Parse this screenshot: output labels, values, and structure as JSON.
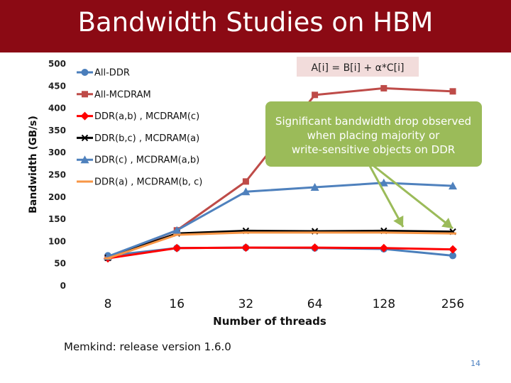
{
  "slide": {
    "title": "Bandwidth Studies on HBM",
    "footnote": "Memkind: release version 1.6.0",
    "page_number": "14",
    "title_bar_color": "#8b0a14"
  },
  "chart_data": {
    "type": "line",
    "xlabel": "Number of threads",
    "ylabel": "Bandwidth (GB/s)",
    "categories": [
      "8",
      "16",
      "32",
      "64",
      "128",
      "256"
    ],
    "ylim": [
      0,
      500
    ],
    "yticks": [
      "0",
      "50",
      "100",
      "150",
      "200",
      "250",
      "300",
      "350",
      "400",
      "450",
      "500"
    ],
    "grid": false,
    "legend_position": "top-left",
    "series": [
      {
        "name": "All-DDR",
        "color": "#4a7ebb",
        "marker": "circle",
        "values": [
          68,
          85,
          86,
          85,
          83,
          68
        ]
      },
      {
        "name": "All-MCDRAM",
        "color": "#be4b48",
        "marker": "square",
        "values": [
          63,
          125,
          235,
          430,
          445,
          438
        ]
      },
      {
        "name": "DDR(a,b) , MCDRAM(c)",
        "color": "#ff0000",
        "marker": "diamond",
        "values": [
          62,
          85,
          86,
          86,
          85,
          82
        ]
      },
      {
        "name": "DDR(b,c) , MCDRAM(a)",
        "color": "#000000",
        "marker": "x",
        "values": [
          63,
          118,
          124,
          123,
          124,
          122
        ]
      },
      {
        "name": "DDR(c) , MCDRAM(a,b)",
        "color": "#4f81bd",
        "marker": "triangle",
        "values": [
          66,
          125,
          212,
          222,
          232,
          225
        ]
      },
      {
        "name": "DDR(a) , MCDRAM(b, c)",
        "color": "#f79646",
        "marker": "dash",
        "values": [
          62,
          115,
          120,
          120,
          120,
          118
        ]
      }
    ],
    "annotations": {
      "formula": "A[i] = B[i] + α*C[i]",
      "callout": "Significant bandwidth drop observed when placing majority or write-sensitive objects on DDR",
      "callout_color": "#9bbb59"
    }
  }
}
